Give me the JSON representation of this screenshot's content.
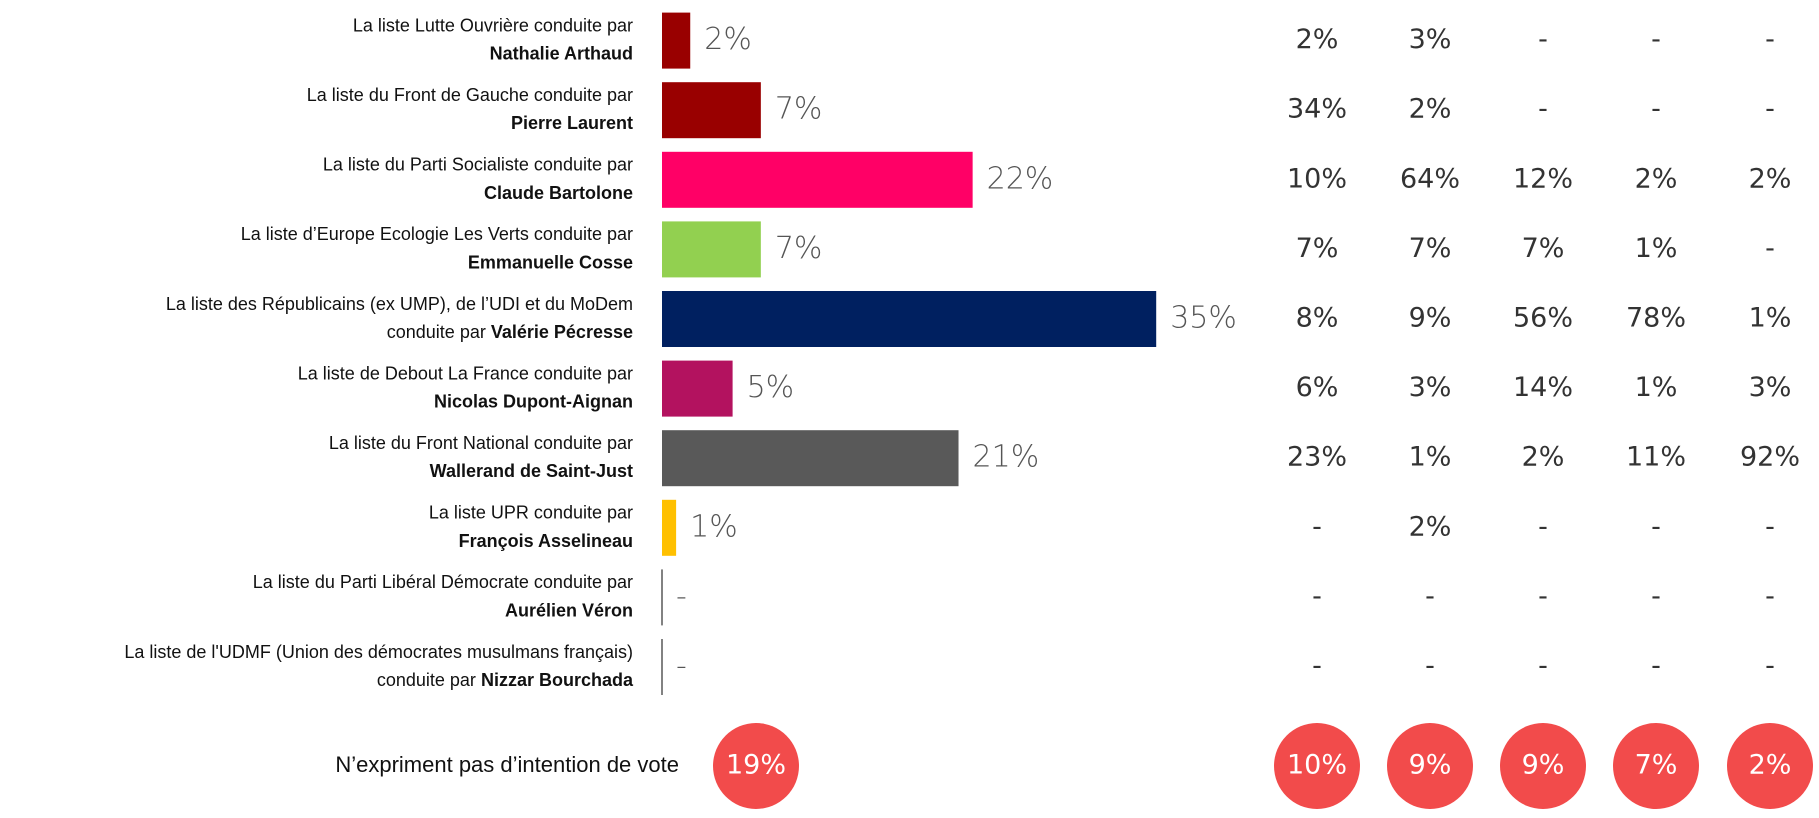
{
  "chart_data": {
    "type": "bar",
    "categories": [
      {
        "text": "La liste Lutte Ouvrière conduite par",
        "name": "Nathalie Arthaud"
      },
      {
        "text": "La liste du Front de Gauche conduite par",
        "name": "Pierre Laurent"
      },
      {
        "text": "La liste du Parti Socialiste conduite par",
        "name": "Claude Bartolone"
      },
      {
        "text": "La liste d’Europe Ecologie Les Verts conduite par",
        "name": "Emmanuelle Cosse"
      },
      {
        "text": "La liste des Républicains (ex UMP), de l’UDI et du MoDem",
        "text2": "conduite par",
        "name": "Valérie Pécresse"
      },
      {
        "text": "La liste de Debout La France conduite par",
        "name": "Nicolas Dupont-Aignan"
      },
      {
        "text": "La liste du Front National conduite par",
        "name": "Wallerand de Saint-Just"
      },
      {
        "text": "La liste UPR conduite par",
        "name": "François Asselineau"
      },
      {
        "text": "La liste du Parti Libéral Démocrate conduite par",
        "name": "Aurélien Véron"
      },
      {
        "text": "La liste de l'UDMF (Union des démocrates musulmans français)",
        "text2": "conduite par",
        "name": "Nizzar Bourchada"
      }
    ],
    "values": [
      2,
      7,
      22,
      7,
      35,
      5,
      21,
      1,
      null,
      null
    ],
    "value_labels": [
      "2%",
      "7%",
      "22%",
      "7%",
      "35%",
      "5%",
      "21%",
      "1%",
      "-",
      "-"
    ],
    "colors": [
      "#990000",
      "#990000",
      "#ff0066",
      "#92d050",
      "#002060",
      "#b3125f",
      "#595959",
      "#ffc000",
      "#595959",
      "#595959"
    ]
  },
  "table": {
    "rows": [
      [
        "2%",
        "3%",
        "-",
        "-",
        "-"
      ],
      [
        "34%",
        "2%",
        "-",
        "-",
        "-"
      ],
      [
        "10%",
        "64%",
        "12%",
        "2%",
        "2%"
      ],
      [
        "7%",
        "7%",
        "7%",
        "1%",
        "-"
      ],
      [
        "8%",
        "9%",
        "56%",
        "78%",
        "1%"
      ],
      [
        "6%",
        "3%",
        "14%",
        "1%",
        "3%"
      ],
      [
        "23%",
        "1%",
        "2%",
        "11%",
        "92%"
      ],
      [
        "-",
        "2%",
        "-",
        "-",
        "-"
      ],
      [
        "-",
        "-",
        "-",
        "-",
        "-"
      ],
      [
        "-",
        "-",
        "-",
        "-",
        "-"
      ]
    ]
  },
  "footer": {
    "label": "N’expriment pas d’intention de vote",
    "value": "19%",
    "columns": [
      "10%",
      "9%",
      "9%",
      "7%",
      "2%"
    ]
  }
}
